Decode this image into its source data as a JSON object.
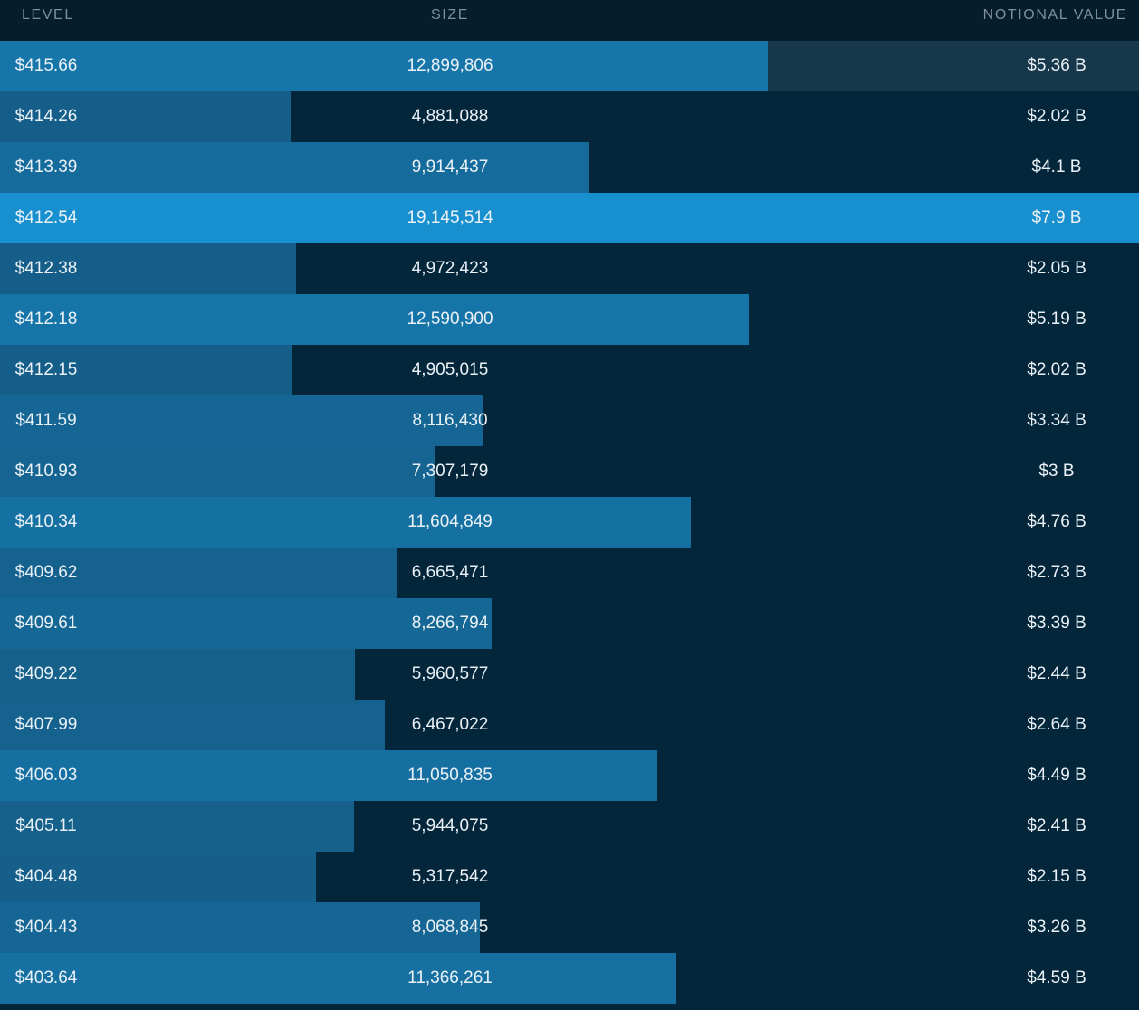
{
  "columns": {
    "level": "LEVEL",
    "size": "SIZE",
    "notional": "NOTIONAL VALUE"
  },
  "colors": {
    "background": "#03263b",
    "header_background": "#041e2d",
    "bar_fill": "#1a77ad",
    "bar_max": "#1890cf",
    "text": "#eaf1f6",
    "header_text": "#7f8f9b"
  },
  "max_size": 19145514,
  "rows": [
    {
      "level": "$415.66",
      "size": "12,899,806",
      "size_value": 12899806,
      "notional": "$5.36 B",
      "highlight": true
    },
    {
      "level": "$414.26",
      "size": "4,881,088",
      "size_value": 4881088,
      "notional": "$2.02 B"
    },
    {
      "level": "$413.39",
      "size": "9,914,437",
      "size_value": 9914437,
      "notional": "$4.1 B"
    },
    {
      "level": "$412.54",
      "size": "19,145,514",
      "size_value": 19145514,
      "notional": "$7.9 B"
    },
    {
      "level": "$412.38",
      "size": "4,972,423",
      "size_value": 4972423,
      "notional": "$2.05 B"
    },
    {
      "level": "$412.18",
      "size": "12,590,900",
      "size_value": 12590900,
      "notional": "$5.19 B"
    },
    {
      "level": "$412.15",
      "size": "4,905,015",
      "size_value": 4905015,
      "notional": "$2.02 B"
    },
    {
      "level": "$411.59",
      "size": "8,116,430",
      "size_value": 8116430,
      "notional": "$3.34 B"
    },
    {
      "level": "$410.93",
      "size": "7,307,179",
      "size_value": 7307179,
      "notional": "$3 B"
    },
    {
      "level": "$410.34",
      "size": "11,604,849",
      "size_value": 11604849,
      "notional": "$4.76 B"
    },
    {
      "level": "$409.62",
      "size": "6,665,471",
      "size_value": 6665471,
      "notional": "$2.73 B"
    },
    {
      "level": "$409.61",
      "size": "8,266,794",
      "size_value": 8266794,
      "notional": "$3.39 B"
    },
    {
      "level": "$409.22",
      "size": "5,960,577",
      "size_value": 5960577,
      "notional": "$2.44 B"
    },
    {
      "level": "$407.99",
      "size": "6,467,022",
      "size_value": 6467022,
      "notional": "$2.64 B"
    },
    {
      "level": "$406.03",
      "size": "11,050,835",
      "size_value": 11050835,
      "notional": "$4.49 B"
    },
    {
      "level": "$405.11",
      "size": "5,944,075",
      "size_value": 5944075,
      "notional": "$2.41 B"
    },
    {
      "level": "$404.48",
      "size": "5,317,542",
      "size_value": 5317542,
      "notional": "$2.15 B"
    },
    {
      "level": "$404.43",
      "size": "8,068,845",
      "size_value": 8068845,
      "notional": "$3.26 B"
    },
    {
      "level": "$403.64",
      "size": "11,366,261",
      "size_value": 11366261,
      "notional": "$4.59 B"
    }
  ]
}
